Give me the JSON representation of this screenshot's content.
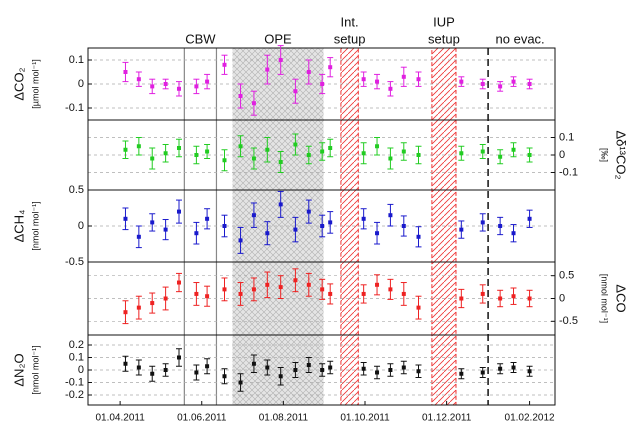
{
  "chart_data": [
    {
      "type": "scatter",
      "ylabel": "ΔCO₂",
      "yunit": "[µmol mol⁻¹]",
      "side": "left",
      "color": "#e020e0",
      "xlim": [
        "2011-03-08",
        "2012-02-20"
      ],
      "x": [
        "2011-04-05",
        "2011-04-15",
        "2011-04-25",
        "2011-05-05",
        "2011-05-15",
        "2011-05-28",
        "2011-06-05",
        "2011-06-18",
        "2011-06-30",
        "2011-07-10",
        "2011-07-20",
        "2011-07-30",
        "2011-08-10",
        "2011-08-20",
        "2011-08-30",
        "2011-09-05",
        "2011-09-30",
        "2011-10-10",
        "2011-10-20",
        "2011-10-30",
        "2011-11-10",
        "2011-12-12",
        "2011-12-28",
        "2012-01-10",
        "2012-01-20",
        "2012-02-01"
      ],
      "values": [
        0.05,
        0.02,
        -0.01,
        0.0,
        -0.02,
        -0.01,
        0.01,
        0.08,
        -0.05,
        -0.08,
        0.06,
        0.1,
        -0.03,
        0.05,
        0.0,
        0.07,
        0.02,
        0.01,
        -0.02,
        0.03,
        0.02,
        0.01,
        0.0,
        -0.01,
        0.01,
        0.0
      ],
      "errors": [
        0.04,
        0.03,
        0.03,
        0.02,
        0.03,
        0.03,
        0.03,
        0.04,
        0.05,
        0.05,
        0.06,
        0.06,
        0.05,
        0.05,
        0.04,
        0.04,
        0.03,
        0.03,
        0.03,
        0.04,
        0.03,
        0.02,
        0.02,
        0.02,
        0.02,
        0.02
      ],
      "ylim": [
        -0.15,
        0.15
      ],
      "yticks": [
        -0.1,
        0.0,
        0.1
      ],
      "grid": true,
      "regions": [
        {
          "label": [
            "CBW"
          ],
          "from": "2011-05-19",
          "to": "2011-06-12",
          "style": "lines"
        },
        {
          "label": [
            "OPE"
          ],
          "from": "2011-06-24",
          "to": "2011-08-31",
          "style": "gray-hatch"
        },
        {
          "label": [
            "Int.",
            "setup"
          ],
          "from": "2011-09-13",
          "to": "2011-09-26",
          "style": "red-hatch"
        },
        {
          "label": [
            "IUP",
            "setup"
          ],
          "from": "2011-11-20",
          "to": "2011-12-08",
          "style": "red-hatch"
        },
        {
          "label": [
            "no evac."
          ],
          "from": "2012-01-01",
          "to": "2012-01-01",
          "style": "dashed"
        }
      ]
    },
    {
      "type": "scatter",
      "ylabel": "Δδ¹³CO₂",
      "yunit": "[‰]",
      "side": "right",
      "color": "#22cc22",
      "xlim": [
        "2011-03-08",
        "2012-02-20"
      ],
      "x": [
        "2011-04-05",
        "2011-04-15",
        "2011-04-25",
        "2011-05-05",
        "2011-05-15",
        "2011-05-28",
        "2011-06-05",
        "2011-06-18",
        "2011-06-30",
        "2011-07-10",
        "2011-07-20",
        "2011-07-30",
        "2011-08-10",
        "2011-08-20",
        "2011-08-30",
        "2011-09-05",
        "2011-09-30",
        "2011-10-10",
        "2011-10-20",
        "2011-10-30",
        "2011-11-10",
        "2011-12-12",
        "2011-12-28",
        "2012-01-10",
        "2012-01-20",
        "2012-02-01"
      ],
      "values": [
        0.03,
        0.05,
        -0.02,
        0.01,
        0.04,
        0.0,
        0.02,
        -0.03,
        0.05,
        -0.02,
        0.03,
        -0.04,
        0.06,
        0.0,
        0.02,
        0.04,
        0.01,
        0.05,
        -0.02,
        0.02,
        0.0,
        0.01,
        0.02,
        -0.01,
        0.03,
        0.0
      ],
      "errors": [
        0.05,
        0.05,
        0.06,
        0.05,
        0.05,
        0.05,
        0.04,
        0.06,
        0.06,
        0.06,
        0.07,
        0.06,
        0.06,
        0.05,
        0.05,
        0.05,
        0.06,
        0.05,
        0.06,
        0.05,
        0.05,
        0.04,
        0.04,
        0.04,
        0.04,
        0.04
      ],
      "ylim": [
        -0.2,
        0.2
      ],
      "yticks": [
        -0.1,
        0.0,
        0.1
      ],
      "grid": true
    },
    {
      "type": "scatter",
      "ylabel": "ΔCH₄",
      "yunit": "[nmol mol⁻¹]",
      "side": "left",
      "color": "#1a1acc",
      "xlim": [
        "2011-03-08",
        "2012-02-20"
      ],
      "x": [
        "2011-04-05",
        "2011-04-15",
        "2011-04-25",
        "2011-05-05",
        "2011-05-15",
        "2011-05-28",
        "2011-06-05",
        "2011-06-18",
        "2011-06-30",
        "2011-07-10",
        "2011-07-20",
        "2011-07-30",
        "2011-08-10",
        "2011-08-20",
        "2011-08-30",
        "2011-09-05",
        "2011-09-30",
        "2011-10-10",
        "2011-10-20",
        "2011-10-30",
        "2011-11-10",
        "2011-12-12",
        "2011-12-28",
        "2012-01-10",
        "2012-01-20",
        "2012-02-01"
      ],
      "values": [
        0.1,
        -0.15,
        0.05,
        -0.05,
        0.2,
        -0.1,
        0.1,
        0.0,
        -0.2,
        0.15,
        -0.1,
        0.3,
        -0.05,
        0.2,
        0.0,
        0.05,
        0.1,
        -0.1,
        0.15,
        0.0,
        -0.15,
        -0.05,
        0.05,
        0.0,
        -0.1,
        0.1
      ],
      "errors": [
        0.15,
        0.15,
        0.12,
        0.14,
        0.16,
        0.15,
        0.14,
        0.15,
        0.18,
        0.17,
        0.16,
        0.18,
        0.17,
        0.16,
        0.15,
        0.15,
        0.14,
        0.15,
        0.15,
        0.14,
        0.14,
        0.12,
        0.12,
        0.12,
        0.12,
        0.12
      ],
      "ylim": [
        -0.5,
        0.5
      ],
      "yticks": [
        -0.5,
        0.0,
        0.5
      ],
      "grid": true
    },
    {
      "type": "scatter",
      "ylabel": "ΔCO",
      "yunit": "[nmol mol⁻¹]",
      "side": "right",
      "color": "#ee2222",
      "xlim": [
        "2011-03-08",
        "2012-02-20"
      ],
      "x": [
        "2011-04-05",
        "2011-04-15",
        "2011-04-25",
        "2011-05-05",
        "2011-05-15",
        "2011-05-28",
        "2011-06-05",
        "2011-06-18",
        "2011-06-30",
        "2011-07-10",
        "2011-07-20",
        "2011-07-30",
        "2011-08-10",
        "2011-08-20",
        "2011-08-30",
        "2011-09-05",
        "2011-09-30",
        "2011-10-10",
        "2011-10-20",
        "2011-10-30",
        "2011-11-10",
        "2011-12-12",
        "2011-12-28",
        "2012-01-10",
        "2012-01-20",
        "2012-02-01"
      ],
      "values": [
        -0.3,
        -0.2,
        -0.1,
        0.0,
        0.35,
        0.1,
        0.05,
        0.2,
        0.1,
        0.2,
        0.3,
        0.25,
        0.4,
        0.3,
        0.2,
        0.1,
        0.1,
        0.3,
        0.2,
        0.1,
        -0.2,
        0.0,
        0.1,
        0.0,
        0.05,
        0.0
      ],
      "errors": [
        0.25,
        0.25,
        0.22,
        0.25,
        0.2,
        0.25,
        0.22,
        0.25,
        0.25,
        0.25,
        0.28,
        0.25,
        0.25,
        0.25,
        0.22,
        0.22,
        0.2,
        0.22,
        0.22,
        0.25,
        0.25,
        0.2,
        0.2,
        0.18,
        0.18,
        0.18
      ],
      "ylim": [
        -0.8,
        0.8
      ],
      "yticks": [
        -0.5,
        0.0,
        0.5
      ],
      "grid": true
    },
    {
      "type": "scatter",
      "ylabel": "ΔN₂O",
      "yunit": "[nmol mol⁻¹]",
      "side": "left",
      "color": "#111111",
      "xlim": [
        "2011-03-08",
        "2012-02-20"
      ],
      "x": [
        "2011-04-05",
        "2011-04-15",
        "2011-04-25",
        "2011-05-05",
        "2011-05-15",
        "2011-05-28",
        "2011-06-05",
        "2011-06-18",
        "2011-06-30",
        "2011-07-10",
        "2011-07-20",
        "2011-07-30",
        "2011-08-10",
        "2011-08-20",
        "2011-08-30",
        "2011-09-05",
        "2011-09-30",
        "2011-10-10",
        "2011-10-20",
        "2011-10-30",
        "2011-11-10",
        "2011-12-12",
        "2011-12-28",
        "2012-01-10",
        "2012-01-20",
        "2012-02-01"
      ],
      "values": [
        0.05,
        0.02,
        -0.03,
        0.0,
        0.1,
        -0.02,
        0.03,
        -0.05,
        -0.1,
        0.05,
        0.02,
        -0.05,
        0.0,
        0.04,
        0.0,
        0.02,
        0.01,
        -0.02,
        0.0,
        0.02,
        -0.01,
        -0.03,
        -0.02,
        0.01,
        0.02,
        -0.01
      ],
      "errors": [
        0.06,
        0.06,
        0.06,
        0.05,
        0.07,
        0.06,
        0.06,
        0.06,
        0.07,
        0.07,
        0.06,
        0.07,
        0.06,
        0.06,
        0.05,
        0.05,
        0.05,
        0.05,
        0.05,
        0.05,
        0.05,
        0.04,
        0.04,
        0.04,
        0.04,
        0.04
      ],
      "ylim": [
        -0.28,
        0.28
      ],
      "yticks": [
        -0.2,
        -0.1,
        0.0,
        0.1,
        0.2
      ],
      "grid": true,
      "xticks": [
        {
          "value": "2011-04-01",
          "label": "01.04.2011"
        },
        {
          "value": "2011-06-01",
          "label": "01.06.2011"
        },
        {
          "value": "2011-08-01",
          "label": "01.08.2011"
        },
        {
          "value": "2011-10-01",
          "label": "01.10.2011"
        },
        {
          "value": "2011-12-01",
          "label": "01.12.2011"
        },
        {
          "value": "2012-02-01",
          "label": "01.02.2012"
        }
      ]
    }
  ]
}
